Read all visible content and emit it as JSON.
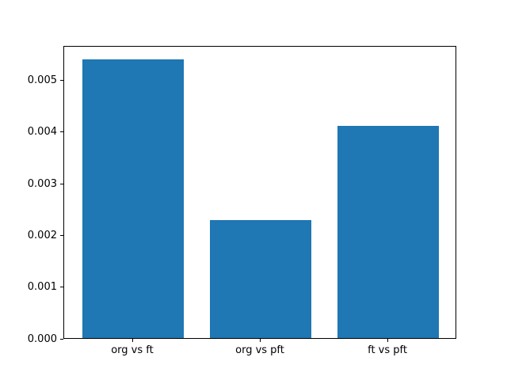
{
  "figure": {
    "background_color": "#ffffff"
  },
  "chart_data": {
    "type": "bar",
    "title": "",
    "xlabel": "",
    "ylabel": "",
    "categories": [
      "org vs ft",
      "org vs pft",
      "ft vs pft"
    ],
    "values": [
      0.0054,
      0.00229,
      0.00411
    ],
    "bar_color": "#1f77b4",
    "bar_width_fraction": 0.8,
    "xlim": [
      -0.54,
      2.54
    ],
    "ylim": [
      0,
      0.00567
    ],
    "yticks": [
      0.0,
      0.001,
      0.002,
      0.003,
      0.004,
      0.005
    ],
    "ytick_labels": [
      "0.000",
      "0.001",
      "0.002",
      "0.003",
      "0.004",
      "0.005"
    ],
    "grid": false,
    "legend": null
  }
}
